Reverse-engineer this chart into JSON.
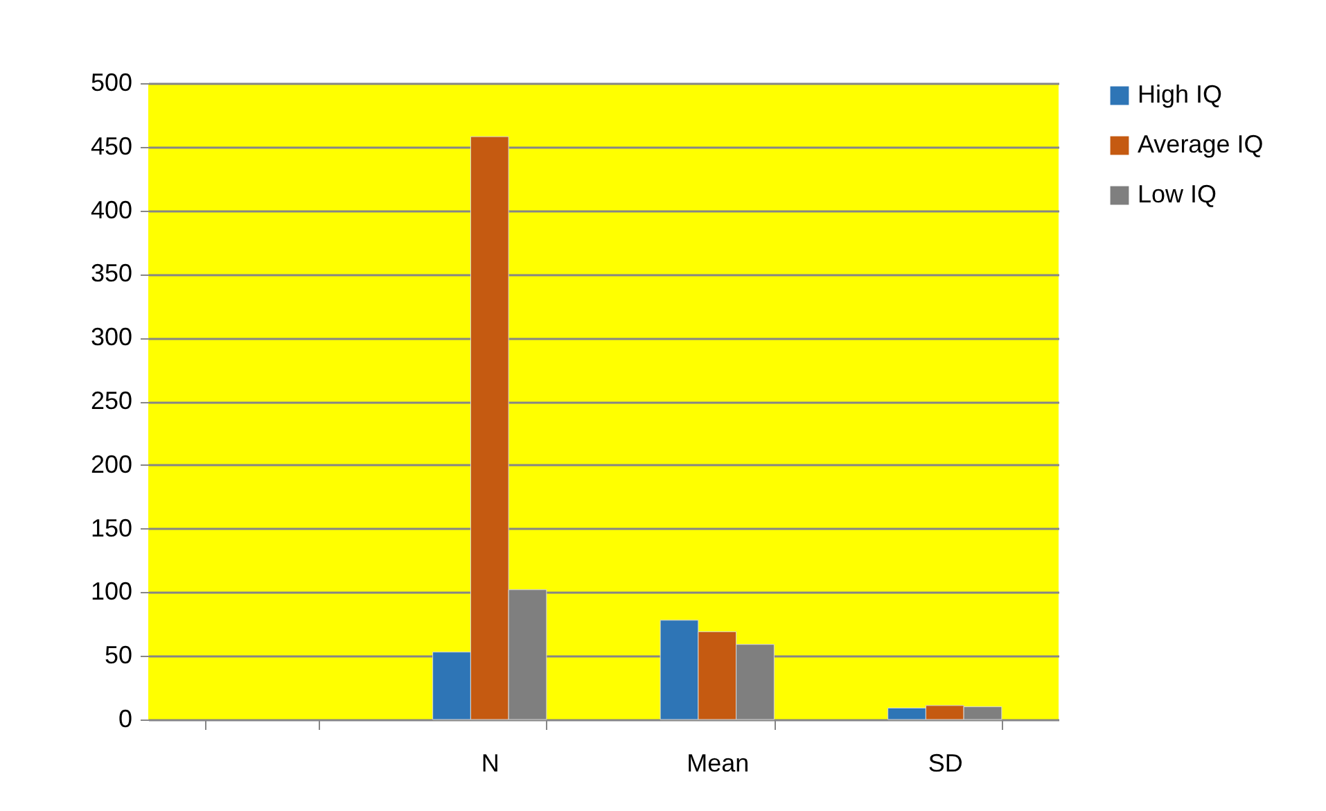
{
  "chart_data": {
    "type": "bar",
    "categories": [
      null,
      "N",
      "Mean",
      "SD"
    ],
    "series": [
      {
        "name": "High IQ",
        "color": "#2e75b6",
        "values": [
          null,
          53,
          78,
          9
        ]
      },
      {
        "name": "Average IQ",
        "color": "#c55a11",
        "values": [
          null,
          458,
          69,
          11
        ]
      },
      {
        "name": "Low IQ",
        "color": "#7f7f7f",
        "values": [
          null,
          102,
          59,
          10
        ]
      }
    ],
    "ylim": [
      0,
      500
    ],
    "yticks": [
      0,
      50,
      100,
      150,
      200,
      250,
      300,
      350,
      400,
      450,
      500
    ],
    "grid": "y",
    "legend": "right"
  }
}
